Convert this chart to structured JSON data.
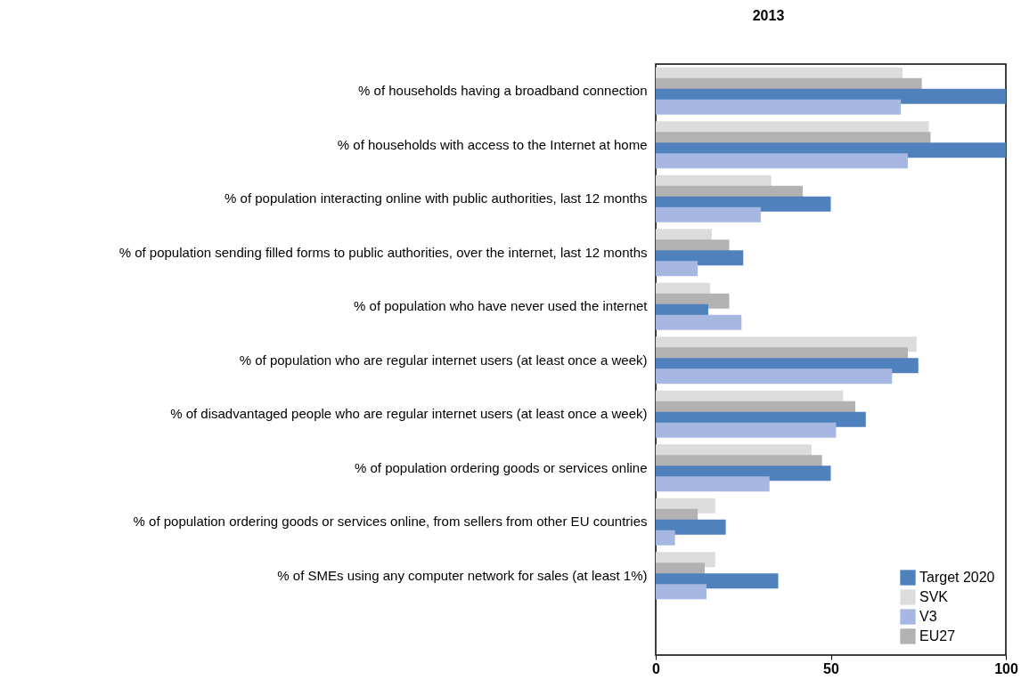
{
  "chart_data": {
    "type": "bar",
    "orientation": "horizontal",
    "title": "2013",
    "categories": [
      "% of households having a broadband connection",
      "% of households with access to the Internet at home",
      "% of population interacting online with public authorities, last 12 months",
      "% of population sending filled forms to public authorities, over the internet, last 12 months",
      "% of population who have never used the internet",
      "% of population who are regular internet users (at least once a week)",
      "% of disadvantaged people who are regular internet users (at least once a week)",
      "% of population ordering goods or services online",
      "% of population ordering goods or services online, from sellers from other EU countries",
      "% of SMEs using any computer network for sales (at least 1%)"
    ],
    "series": [
      {
        "name": "SVK",
        "color": "#dcdcdc",
        "values": [
          70.5,
          78,
          33,
          16,
          15.5,
          74.5,
          53.5,
          44.5,
          17,
          17
        ]
      },
      {
        "name": "EU27",
        "color": "#b2b2b2",
        "values": [
          76,
          78.5,
          42,
          21,
          21,
          72,
          57,
          47.5,
          12,
          14
        ]
      },
      {
        "name": "Target 2020",
        "color": "#4f81bd",
        "values": [
          100,
          100,
          50,
          25,
          15,
          75,
          60,
          50,
          20,
          35
        ]
      },
      {
        "name": "V3",
        "color": "#a6b8e2",
        "values": [
          70,
          72,
          30,
          12,
          24.5,
          67.5,
          51.5,
          32.5,
          5.5,
          14.5
        ]
      }
    ],
    "xlim": [
      0,
      100
    ],
    "xticks": [
      0,
      50,
      100
    ],
    "grid": false,
    "legend": "bottom right"
  }
}
